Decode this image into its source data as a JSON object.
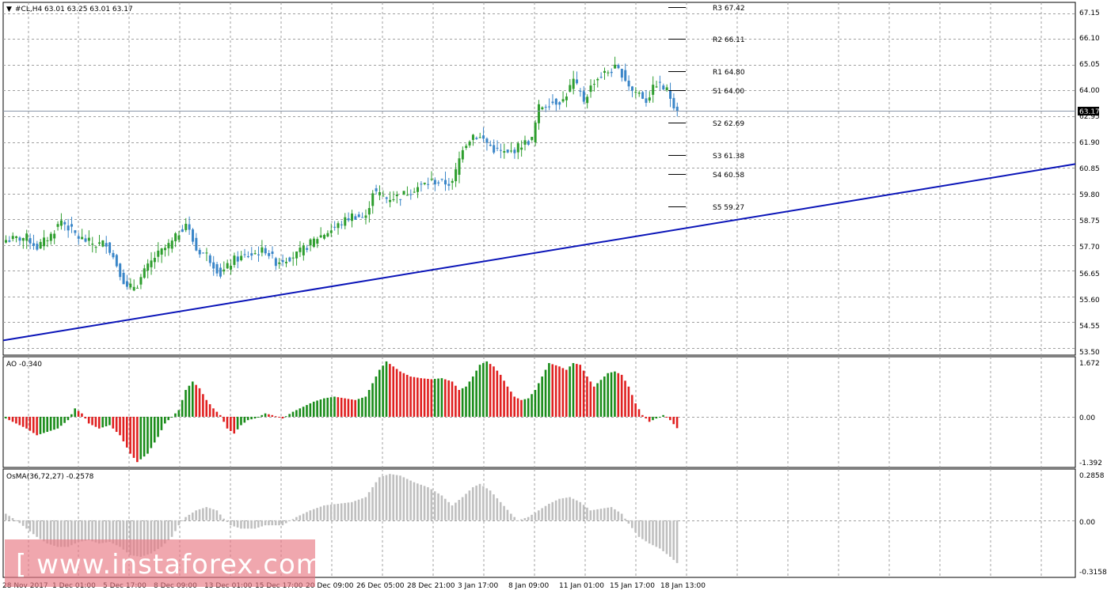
{
  "main_panel": {
    "header_arrow": "▼",
    "header_text": "#CL,H4  63.01 63.25 63.01 63.17",
    "current_price_label": "63.17",
    "price_tick_labels": [
      "67.15",
      "66.10",
      "65.05",
      "64.00",
      "62.95",
      "61.90",
      "60.85",
      "59.80",
      "58.75",
      "57.70",
      "56.65",
      "55.60",
      "54.55",
      "53.50"
    ]
  },
  "pivot_levels": [
    {
      "label": "R3 67.42",
      "value": 67.42
    },
    {
      "label": "R2 66.11",
      "value": 66.11
    },
    {
      "label": "R1 64.80",
      "value": 64.8
    },
    {
      "label": "S1 64.00",
      "value": 64.0
    },
    {
      "label": "S2 62.69",
      "value": 62.69
    },
    {
      "label": "S3 61.38",
      "value": 61.38
    },
    {
      "label": "S4 60.58",
      "value": 60.58
    },
    {
      "label": "S5 59.27",
      "value": 59.27
    }
  ],
  "ao_panel": {
    "title": "AO -0.340",
    "tick_labels": [
      "1.672",
      "0.00",
      "-1.392"
    ]
  },
  "osma_panel": {
    "title": "OsMA(36,72,27) -0.2578",
    "tick_labels": [
      "0.2858",
      "0.00",
      "-0.3158"
    ]
  },
  "time_labels": [
    "28 Nov 2017",
    "1 Dec 01:00",
    "5 Dec 17:00",
    "8 Dec 09:00",
    "13 Dec 01:00",
    "15 Dec 17:00",
    "20 Dec 09:00",
    "26 Dec 05:00",
    "28 Dec 21:00",
    "3 Jan 17:00",
    "8 Jan 09:00",
    "11 Jan 01:00",
    "15 Jan 17:00",
    "18 Jan 13:00"
  ],
  "watermark": "[ www.instaforex.com ]",
  "colors": {
    "bull": "#2e9e2e",
    "bear": "#3a86c8",
    "trendline": "#0a14b8",
    "ao_up": "#1a8c1a",
    "ao_down": "#e02020",
    "osma": "#bfbfbf",
    "grid": "#a0a0a0"
  },
  "chart_data": [
    {
      "type": "candlestick",
      "symbol": "#CL",
      "timeframe": "H4",
      "ylim": [
        53.2,
        67.6
      ],
      "price_path": [
        [
          0,
          57.9
        ],
        [
          6,
          58.0
        ],
        [
          9,
          57.6
        ],
        [
          13,
          58.1
        ],
        [
          16,
          58.7
        ],
        [
          21,
          58.0
        ],
        [
          26,
          57.7
        ],
        [
          29,
          57.8
        ],
        [
          32,
          56.9
        ],
        [
          35,
          55.9
        ],
        [
          38,
          56.1
        ],
        [
          40,
          56.6
        ],
        [
          43,
          57.2
        ],
        [
          48,
          57.8
        ],
        [
          52,
          58.6
        ],
        [
          55,
          57.5
        ],
        [
          58,
          57.3
        ],
        [
          62,
          56.5
        ],
        [
          66,
          57.1
        ],
        [
          71,
          57.3
        ],
        [
          75,
          57.5
        ],
        [
          78,
          57.0
        ],
        [
          84,
          57.3
        ],
        [
          90,
          58.0
        ],
        [
          95,
          58.4
        ],
        [
          100,
          58.9
        ],
        [
          104,
          58.8
        ],
        [
          106,
          59.9
        ],
        [
          110,
          59.6
        ],
        [
          114,
          59.7
        ],
        [
          118,
          60.0
        ],
        [
          123,
          60.3
        ],
        [
          129,
          60.2
        ],
        [
          132,
          61.7
        ],
        [
          135,
          62.2
        ],
        [
          138,
          62.0
        ],
        [
          141,
          61.6
        ],
        [
          145,
          61.4
        ],
        [
          149,
          61.8
        ],
        [
          152,
          62.0
        ],
        [
          154,
          63.3
        ],
        [
          157,
          63.5
        ],
        [
          161,
          63.6
        ],
        [
          164,
          64.4
        ],
        [
          167,
          63.6
        ],
        [
          170,
          64.4
        ],
        [
          173,
          64.7
        ],
        [
          176,
          64.9
        ],
        [
          178,
          64.7
        ],
        [
          181,
          64.0
        ],
        [
          183,
          63.9
        ],
        [
          185,
          63.6
        ],
        [
          188,
          64.3
        ],
        [
          191,
          64.0
        ],
        [
          194,
          63.17
        ]
      ],
      "trendline": {
        "start": {
          "time": "28 Nov 2017",
          "value": 53.8
        },
        "end": {
          "value": 61.0
        }
      },
      "pivots": {
        "R3": 67.42,
        "R2": 66.11,
        "R1": 64.8,
        "S1": 64.0,
        "S2": 62.69,
        "S3": 61.38,
        "S4": 60.58,
        "S5": 59.27
      }
    },
    {
      "type": "bar",
      "title": "AO -0.340",
      "ylim": [
        -1.392,
        1.672
      ],
      "keyframes": [
        [
          0,
          -0.05
        ],
        [
          3,
          -0.2
        ],
        [
          6,
          -0.35
        ],
        [
          9,
          -0.55
        ],
        [
          12,
          -0.45
        ],
        [
          15,
          -0.35
        ],
        [
          18,
          -0.1
        ],
        [
          20,
          0.25
        ],
        [
          22,
          0.1
        ],
        [
          24,
          -0.2
        ],
        [
          27,
          -0.35
        ],
        [
          30,
          -0.25
        ],
        [
          33,
          -0.55
        ],
        [
          36,
          -1.1
        ],
        [
          38,
          -1.35
        ],
        [
          41,
          -1.1
        ],
        [
          44,
          -0.6
        ],
        [
          46,
          -0.2
        ],
        [
          48,
          0.0
        ],
        [
          50,
          0.2
        ],
        [
          52,
          0.8
        ],
        [
          54,
          1.05
        ],
        [
          56,
          0.85
        ],
        [
          58,
          0.5
        ],
        [
          60,
          0.25
        ],
        [
          62,
          0.05
        ],
        [
          64,
          -0.35
        ],
        [
          66,
          -0.5
        ],
        [
          68,
          -0.25
        ],
        [
          70,
          -0.1
        ],
        [
          72,
          -0.05
        ],
        [
          75,
          0.1
        ],
        [
          77,
          0.05
        ],
        [
          80,
          -0.05
        ],
        [
          83,
          0.15
        ],
        [
          86,
          0.3
        ],
        [
          89,
          0.45
        ],
        [
          92,
          0.55
        ],
        [
          95,
          0.6
        ],
        [
          98,
          0.55
        ],
        [
          101,
          0.5
        ],
        [
          104,
          0.6
        ],
        [
          106,
          1.0
        ],
        [
          108,
          1.4
        ],
        [
          110,
          1.65
        ],
        [
          112,
          1.5
        ],
        [
          114,
          1.35
        ],
        [
          117,
          1.2
        ],
        [
          120,
          1.15
        ],
        [
          123,
          1.12
        ],
        [
          126,
          1.15
        ],
        [
          129,
          1.05
        ],
        [
          131,
          0.8
        ],
        [
          133,
          0.9
        ],
        [
          135,
          1.2
        ],
        [
          137,
          1.55
        ],
        [
          139,
          1.65
        ],
        [
          141,
          1.5
        ],
        [
          143,
          1.25
        ],
        [
          145,
          0.9
        ],
        [
          147,
          0.6
        ],
        [
          149,
          0.5
        ],
        [
          151,
          0.55
        ],
        [
          153,
          0.8
        ],
        [
          155,
          1.2
        ],
        [
          157,
          1.6
        ],
        [
          160,
          1.5
        ],
        [
          162,
          1.4
        ],
        [
          164,
          1.6
        ],
        [
          166,
          1.55
        ],
        [
          168,
          1.2
        ],
        [
          170,
          0.9
        ],
        [
          172,
          1.1
        ],
        [
          174,
          1.3
        ],
        [
          176,
          1.35
        ],
        [
          178,
          1.25
        ],
        [
          180,
          0.9
        ],
        [
          182,
          0.4
        ],
        [
          184,
          0.05
        ],
        [
          186,
          -0.15
        ],
        [
          188,
          -0.05
        ],
        [
          190,
          0.05
        ],
        [
          192,
          -0.1
        ],
        [
          194,
          -0.34
        ]
      ]
    },
    {
      "type": "bar",
      "title": "OsMA(36,72,27) -0.2578",
      "ylim": [
        -0.3158,
        0.2858
      ],
      "keyframes": [
        [
          0,
          0.04
        ],
        [
          3,
          0.0
        ],
        [
          6,
          -0.05
        ],
        [
          9,
          -0.1
        ],
        [
          12,
          -0.14
        ],
        [
          15,
          -0.16
        ],
        [
          18,
          -0.16
        ],
        [
          21,
          -0.13
        ],
        [
          24,
          -0.12
        ],
        [
          27,
          -0.14
        ],
        [
          30,
          -0.13
        ],
        [
          33,
          -0.16
        ],
        [
          36,
          -0.21
        ],
        [
          39,
          -0.22
        ],
        [
          42,
          -0.2
        ],
        [
          45,
          -0.16
        ],
        [
          48,
          -0.1
        ],
        [
          50,
          -0.03
        ],
        [
          52,
          0.02
        ],
        [
          55,
          0.06
        ],
        [
          58,
          0.08
        ],
        [
          61,
          0.06
        ],
        [
          63,
          0.01
        ],
        [
          65,
          -0.03
        ],
        [
          68,
          -0.05
        ],
        [
          72,
          -0.05
        ],
        [
          75,
          -0.03
        ],
        [
          80,
          -0.03
        ],
        [
          84,
          0.02
        ],
        [
          88,
          0.06
        ],
        [
          92,
          0.09
        ],
        [
          96,
          0.1
        ],
        [
          100,
          0.11
        ],
        [
          104,
          0.14
        ],
        [
          106,
          0.2
        ],
        [
          108,
          0.26
        ],
        [
          111,
          0.28
        ],
        [
          114,
          0.27
        ],
        [
          118,
          0.23
        ],
        [
          122,
          0.2
        ],
        [
          126,
          0.15
        ],
        [
          129,
          0.09
        ],
        [
          132,
          0.14
        ],
        [
          135,
          0.2
        ],
        [
          137,
          0.22
        ],
        [
          140,
          0.18
        ],
        [
          143,
          0.11
        ],
        [
          146,
          0.04
        ],
        [
          148,
          0.0
        ],
        [
          151,
          0.02
        ],
        [
          154,
          0.06
        ],
        [
          157,
          0.1
        ],
        [
          160,
          0.13
        ],
        [
          163,
          0.14
        ],
        [
          166,
          0.11
        ],
        [
          169,
          0.06
        ],
        [
          172,
          0.07
        ],
        [
          175,
          0.08
        ],
        [
          178,
          0.04
        ],
        [
          180,
          -0.02
        ],
        [
          183,
          -0.1
        ],
        [
          186,
          -0.14
        ],
        [
          189,
          -0.17
        ],
        [
          192,
          -0.22
        ],
        [
          194,
          -0.2578
        ]
      ]
    }
  ]
}
